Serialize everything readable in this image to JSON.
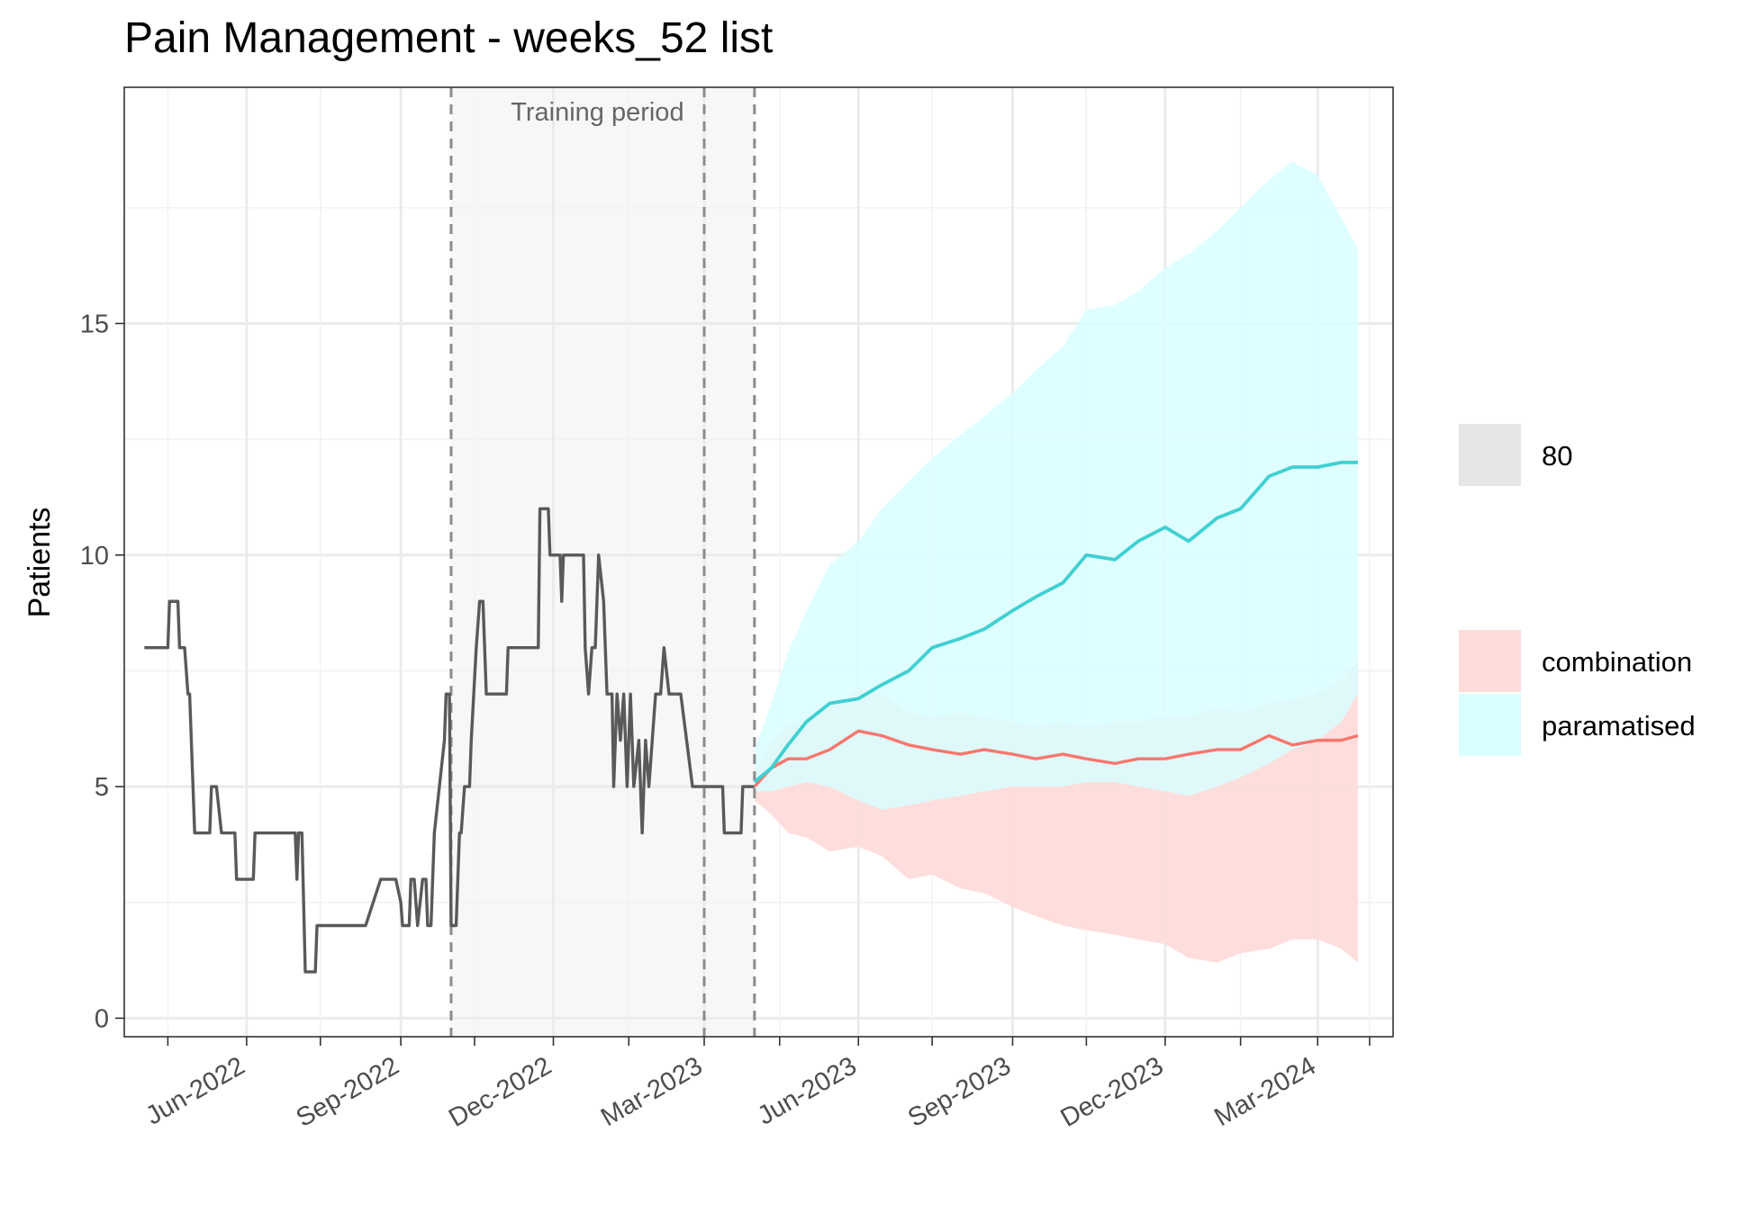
{
  "chart_data": {
    "type": "line",
    "title": "Pain Management - weeks_52 list",
    "xlabel": "",
    "ylabel": "Patients",
    "xlim": [
      "2022-03-20",
      "2024-04-15"
    ],
    "ylim": [
      -0.4,
      20.1
    ],
    "y_ticks": [
      0,
      5,
      10,
      15
    ],
    "x_ticks": [
      {
        "date": "2022-06-01",
        "label": "Jun-2022"
      },
      {
        "date": "2022-09-01",
        "label": "Sep-2022"
      },
      {
        "date": "2022-12-01",
        "label": "Dec-2022"
      },
      {
        "date": "2023-03-01",
        "label": "Mar-2023"
      },
      {
        "date": "2023-06-01",
        "label": "Jun-2023"
      },
      {
        "date": "2023-09-01",
        "label": "Sep-2023"
      },
      {
        "date": "2023-12-01",
        "label": "Dec-2023"
      },
      {
        "date": "2024-03-01",
        "label": "Mar-2024"
      }
    ],
    "grid": true,
    "legend_position": "right",
    "annotations": [
      {
        "label": "Training period",
        "start": "2022-10-01",
        "end": "2023-03-31"
      }
    ],
    "vlines": [
      "2022-10-01",
      "2023-03-01",
      "2023-03-31"
    ],
    "legend": {
      "interval_label": "80",
      "entries": [
        "combination",
        "paramatised"
      ]
    },
    "colors": {
      "observed": "#595959",
      "combination": "#F8766D",
      "combination_band": "#FDDCDA",
      "paramatised": "#3FD0D2",
      "paramatised_band": "#D9FEFF",
      "interval_key": "#E6E6E6",
      "training_shade": "#F7F7F7"
    },
    "series": [
      {
        "name": "observed",
        "x": [
          "2022-04-01",
          "2022-04-15",
          "2022-04-16",
          "2022-04-21",
          "2022-04-22",
          "2022-04-25",
          "2022-04-27",
          "2022-04-28",
          "2022-05-01",
          "2022-05-03",
          "2022-05-10",
          "2022-05-11",
          "2022-05-14",
          "2022-05-17",
          "2022-05-25",
          "2022-05-26",
          "2022-06-05",
          "2022-06-06",
          "2022-06-15",
          "2022-06-16",
          "2022-06-30",
          "2022-07-01",
          "2022-07-02",
          "2022-07-04",
          "2022-07-06",
          "2022-07-12",
          "2022-07-13",
          "2022-08-10",
          "2022-08-11",
          "2022-08-20",
          "2022-08-29",
          "2022-09-01",
          "2022-09-02",
          "2022-09-06",
          "2022-09-07",
          "2022-09-09",
          "2022-09-11",
          "2022-09-14",
          "2022-09-16",
          "2022-09-17",
          "2022-09-19",
          "2022-09-21",
          "2022-09-27",
          "2022-09-28",
          "2022-09-30",
          "2022-10-01",
          "2022-10-04",
          "2022-10-06",
          "2022-10-07",
          "2022-10-09",
          "2022-10-12",
          "2022-10-13",
          "2022-10-16",
          "2022-10-18",
          "2022-10-20",
          "2022-10-22",
          "2022-11-03",
          "2022-11-04",
          "2022-11-22",
          "2022-11-23",
          "2022-11-28",
          "2022-11-29",
          "2022-12-05",
          "2022-12-06",
          "2022-12-07",
          "2022-12-08",
          "2022-12-19",
          "2022-12-20",
          "2022-12-22",
          "2022-12-24",
          "2022-12-26",
          "2022-12-28",
          "2022-12-31",
          "2023-01-02",
          "2023-01-05",
          "2023-01-06",
          "2023-01-08",
          "2023-01-10",
          "2023-01-12",
          "2023-01-14",
          "2023-01-16",
          "2023-01-18",
          "2023-01-21",
          "2023-01-23",
          "2023-01-25",
          "2023-01-27",
          "2023-01-29",
          "2023-01-31",
          "2023-02-03",
          "2023-02-05",
          "2023-02-08",
          "2023-02-11",
          "2023-02-15",
          "2023-02-22",
          "2023-02-23",
          "2023-03-12",
          "2023-03-13",
          "2023-03-23",
          "2023-03-24",
          "2023-03-31"
        ],
        "values": [
          8,
          8,
          9,
          9,
          8,
          8,
          7,
          7,
          4,
          4,
          4,
          5,
          5,
          4,
          4,
          3,
          3,
          4,
          4,
          4,
          4,
          3,
          4,
          4,
          1,
          1,
          2,
          2,
          2,
          3,
          3,
          2.5,
          2,
          2,
          3,
          3,
          2,
          3,
          3,
          2,
          2,
          4,
          6,
          7,
          7,
          2,
          2,
          4,
          4,
          5,
          5,
          6,
          8,
          9,
          9,
          7,
          7,
          8,
          8,
          11,
          11,
          10,
          10,
          9,
          10,
          10,
          10,
          8,
          7,
          8,
          8,
          10,
          9,
          7,
          7,
          5,
          7,
          6,
          7,
          5,
          7,
          5,
          6,
          4,
          6,
          5,
          6,
          7,
          7,
          8,
          7,
          7,
          7,
          5,
          5,
          5,
          4,
          4,
          5,
          5
        ]
      },
      {
        "name": "combination",
        "x": [
          "2023-03-31",
          "2023-04-10",
          "2023-04-20",
          "2023-05-01",
          "2023-05-15",
          "2023-06-01",
          "2023-06-15",
          "2023-07-01",
          "2023-07-15",
          "2023-08-01",
          "2023-08-15",
          "2023-09-01",
          "2023-09-15",
          "2023-10-01",
          "2023-10-15",
          "2023-11-01",
          "2023-11-15",
          "2023-12-01",
          "2023-12-15",
          "2024-01-01",
          "2024-01-15",
          "2024-02-01",
          "2024-02-15",
          "2024-03-01",
          "2024-03-15",
          "2024-03-25"
        ],
        "values": [
          5.0,
          5.4,
          5.6,
          5.6,
          5.8,
          6.2,
          6.1,
          5.9,
          5.8,
          5.7,
          5.8,
          5.7,
          5.6,
          5.7,
          5.6,
          5.5,
          5.6,
          5.6,
          5.7,
          5.8,
          5.8,
          6.1,
          5.9,
          6.0,
          6.0,
          6.1
        ],
        "lower": [
          4.7,
          4.4,
          4.0,
          3.9,
          3.6,
          3.7,
          3.5,
          3.0,
          3.1,
          2.8,
          2.7,
          2.4,
          2.2,
          2.0,
          1.9,
          1.8,
          1.7,
          1.6,
          1.3,
          1.2,
          1.4,
          1.5,
          1.7,
          1.7,
          1.5,
          1.2
        ],
        "upper": [
          5.3,
          6.0,
          6.3,
          6.4,
          6.7,
          7.1,
          7.0,
          6.6,
          6.5,
          6.6,
          6.5,
          6.4,
          6.3,
          6.4,
          6.3,
          6.4,
          6.4,
          6.5,
          6.5,
          6.7,
          6.6,
          6.8,
          6.9,
          7.0,
          7.3,
          7.7
        ]
      },
      {
        "name": "paramatised",
        "x": [
          "2023-03-31",
          "2023-04-10",
          "2023-04-20",
          "2023-05-01",
          "2023-05-15",
          "2023-06-01",
          "2023-06-15",
          "2023-07-01",
          "2023-07-15",
          "2023-08-01",
          "2023-08-15",
          "2023-09-01",
          "2023-09-15",
          "2023-10-01",
          "2023-10-15",
          "2023-11-01",
          "2023-11-15",
          "2023-12-01",
          "2023-12-15",
          "2024-01-01",
          "2024-01-15",
          "2024-02-01",
          "2024-02-15",
          "2024-03-01",
          "2024-03-15",
          "2024-03-25"
        ],
        "values": [
          5.1,
          5.4,
          5.9,
          6.4,
          6.8,
          6.9,
          7.2,
          7.5,
          8.0,
          8.2,
          8.4,
          8.8,
          9.1,
          9.4,
          10.0,
          9.9,
          10.3,
          10.6,
          10.3,
          10.8,
          11.0,
          11.7,
          11.9,
          11.9,
          12.0,
          12.0
        ],
        "lower": [
          4.9,
          4.9,
          5.0,
          5.1,
          5.0,
          4.7,
          4.5,
          4.6,
          4.7,
          4.8,
          4.9,
          5.0,
          5.0,
          5.0,
          5.1,
          5.1,
          5.0,
          4.9,
          4.8,
          5.0,
          5.2,
          5.5,
          5.8,
          6.0,
          6.4,
          7.0
        ],
        "upper": [
          5.8,
          6.8,
          7.9,
          8.8,
          9.8,
          10.3,
          11.0,
          11.6,
          12.1,
          12.6,
          13.0,
          13.5,
          14.0,
          14.5,
          15.3,
          15.4,
          15.7,
          16.2,
          16.5,
          17.0,
          17.5,
          18.1,
          18.5,
          18.2,
          17.3,
          16.6
        ]
      }
    ]
  }
}
